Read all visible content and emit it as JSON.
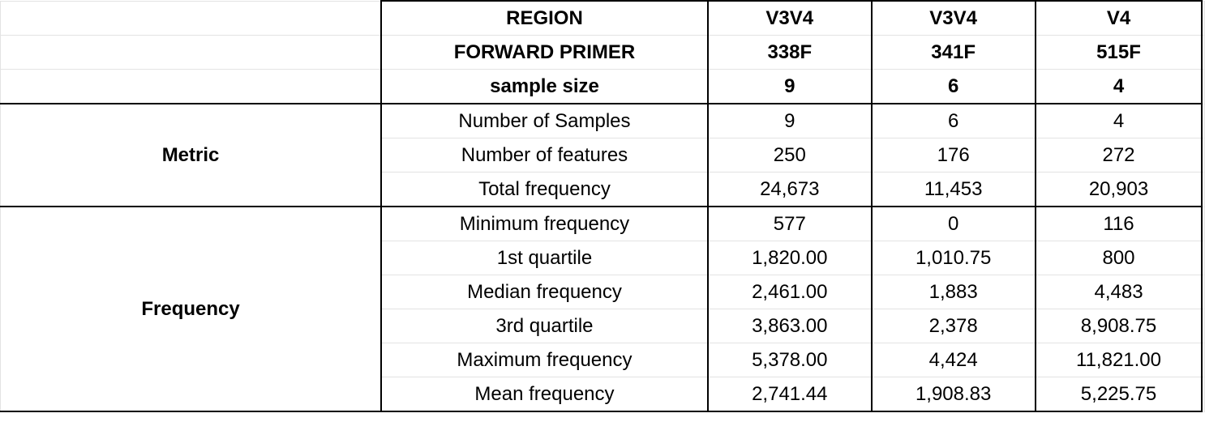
{
  "header_rows": [
    {
      "label": "REGION",
      "values": [
        "V3V4",
        "V3V4",
        "V4"
      ]
    },
    {
      "label": "FORWARD PRIMER",
      "values": [
        "338F",
        "341F",
        "515F"
      ]
    },
    {
      "label": "sample size",
      "values": [
        "9",
        "6",
        "4"
      ]
    }
  ],
  "groups": [
    {
      "label": "Metric",
      "rows": [
        {
          "label": "Number of Samples",
          "values": [
            "9",
            "6",
            "4"
          ]
        },
        {
          "label": "Number of features",
          "values": [
            "250",
            "176",
            "272"
          ]
        },
        {
          "label": "Total frequency",
          "values": [
            "24,673",
            "11,453",
            "20,903"
          ]
        }
      ]
    },
    {
      "label": "Frequency",
      "rows": [
        {
          "label": "Minimum frequency",
          "values": [
            "577",
            "0",
            "116"
          ]
        },
        {
          "label": "1st quartile",
          "values": [
            "1,820.00",
            "1,010.75",
            "800"
          ]
        },
        {
          "label": "Median frequency",
          "values": [
            "2,461.00",
            "1,883",
            "4,483"
          ]
        },
        {
          "label": "3rd quartile",
          "values": [
            "3,863.00",
            "2,378",
            "8,908.75"
          ]
        },
        {
          "label": "Maximum frequency",
          "values": [
            "5,378.00",
            "4,424",
            "11,821.00"
          ]
        },
        {
          "label": "Mean frequency",
          "values": [
            "2,741.44",
            "1,908.83",
            "5,225.75"
          ]
        }
      ]
    }
  ]
}
